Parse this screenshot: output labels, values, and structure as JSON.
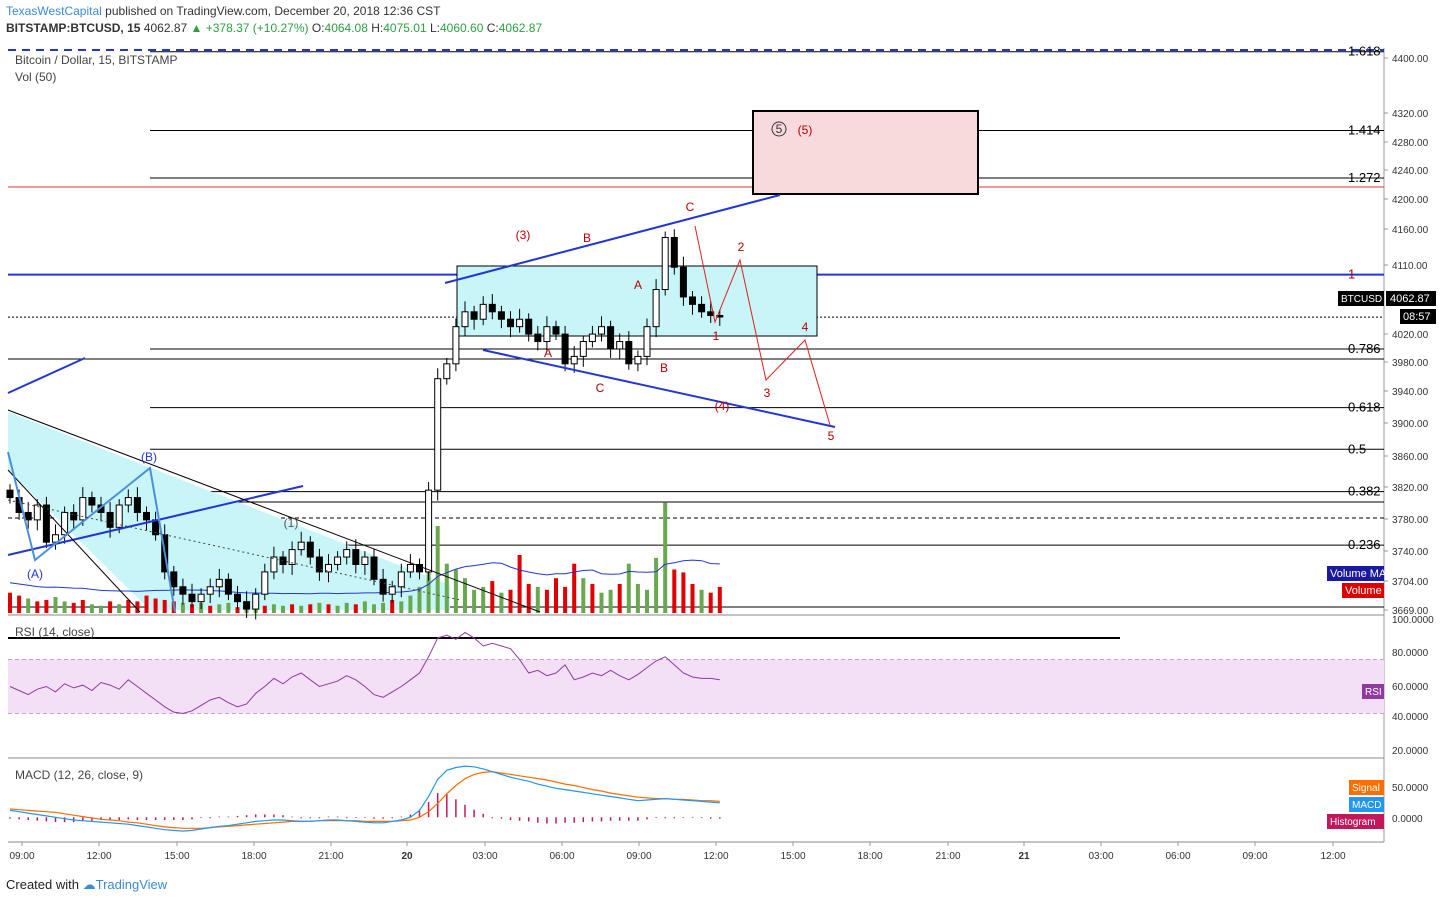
{
  "header": {
    "author": "TexasWestCapital",
    "published": "published on TradingView.com, December 20, 2018 12:36 CST",
    "symbol": "BITSTAMP:BTCUSD, 15",
    "last": "4062.87",
    "change": "▲ +378.37 (+10.27%)",
    "o_label": "O:",
    "o": "4064.08",
    "h_label": "H:",
    "h": "4075.01",
    "l_label": "L:",
    "l": "4060.60",
    "c_label": "C:",
    "c": "4062.87"
  },
  "footer": {
    "created_with": "Created with",
    "brand": "TradingView"
  },
  "colors": {
    "up": "#ffffff",
    "down": "#000000",
    "vol_up": "#6aa84f",
    "vol_down": "#e00000",
    "fib": "#000000",
    "channel": "#2236d6",
    "count": "#b30000",
    "rsi": "#8e3a9e",
    "macd": "#2196f3",
    "signal": "#ff6d00",
    "hist": "#c2185b",
    "zone": "#c8f5f7",
    "target_box": "#f8d9dc"
  },
  "chart_data": [
    {
      "type": "candlestick",
      "title": "Bitcoin / Dollar, 15, BITSTAMP",
      "volume_label": "Vol (50)",
      "price_ticks": [
        "4400.00",
        "4320.00",
        "4280.00",
        "4240.00",
        "4200.00",
        "4160.00",
        "4110.00",
        "4020.00",
        "3980.00",
        "3940.00",
        "3900.00",
        "3860.00",
        "3820.00",
        "3780.00",
        "3740.00",
        "3704.00",
        "3669.00"
      ],
      "last_price_label": "BTCUSD",
      "last_price": "4062.87",
      "countdown": "08:57",
      "x_ticks": [
        "09:00",
        "12:00",
        "15:00",
        "18:00",
        "21:00",
        "20",
        "03:00",
        "06:00",
        "09:00",
        "12:00",
        "15:00",
        "18:00",
        "21:00",
        "21",
        "03:00",
        "06:00",
        "09:00",
        "12:00"
      ],
      "close": [
        3820,
        3800,
        3790,
        3810,
        3760,
        3770,
        3800,
        3790,
        3820,
        3810,
        3800,
        3780,
        3810,
        3820,
        3800,
        3790,
        3770,
        3720,
        3700,
        3690,
        3680,
        3690,
        3700,
        3710,
        3690,
        3680,
        3670,
        3690,
        3720,
        3740,
        3730,
        3750,
        3760,
        3740,
        3720,
        3730,
        3740,
        3750,
        3730,
        3740,
        3710,
        3690,
        3700,
        3720,
        3730,
        3720,
        3830,
        3980,
        4000,
        4050,
        4070,
        4060,
        4080,
        4070,
        4060,
        4050,
        4060,
        4040,
        4030,
        4050,
        4040,
        4000,
        4010,
        4030,
        4040,
        4050,
        4020,
        4030,
        4000,
        4010,
        4050,
        4100,
        4170,
        4130,
        4090,
        4080,
        4070,
        4065,
        4063
      ],
      "volume_bars": [
        {
          "v": 14,
          "up": false
        },
        {
          "v": 12,
          "up": false
        },
        {
          "v": 10,
          "up": true
        },
        {
          "v": 8,
          "up": false
        },
        {
          "v": 9,
          "up": false
        },
        {
          "v": 11,
          "up": true
        },
        {
          "v": 8,
          "up": true
        },
        {
          "v": 7,
          "up": false
        },
        {
          "v": 9,
          "up": false
        },
        {
          "v": 6,
          "up": true
        },
        {
          "v": 5,
          "up": true
        },
        {
          "v": 8,
          "up": false
        },
        {
          "v": 6,
          "up": true
        },
        {
          "v": 9,
          "up": false
        },
        {
          "v": 8,
          "up": false
        },
        {
          "v": 12,
          "up": false
        },
        {
          "v": 10,
          "up": false
        },
        {
          "v": 9,
          "up": false
        },
        {
          "v": 8,
          "up": false
        },
        {
          "v": 7,
          "up": true
        },
        {
          "v": 6,
          "up": false
        },
        {
          "v": 7,
          "up": true
        },
        {
          "v": 5,
          "up": false
        },
        {
          "v": 6,
          "up": true
        },
        {
          "v": 7,
          "up": true
        },
        {
          "v": 4,
          "up": false
        },
        {
          "v": 6,
          "up": true
        },
        {
          "v": 7,
          "up": true
        },
        {
          "v": 5,
          "up": false
        },
        {
          "v": 6,
          "up": true
        },
        {
          "v": 5,
          "up": true
        },
        {
          "v": 6,
          "up": false
        },
        {
          "v": 5,
          "up": true
        },
        {
          "v": 6,
          "up": false
        },
        {
          "v": 7,
          "up": true
        },
        {
          "v": 6,
          "up": false
        },
        {
          "v": 5,
          "up": true
        },
        {
          "v": 7,
          "up": true
        },
        {
          "v": 6,
          "up": false
        },
        {
          "v": 8,
          "up": true
        },
        {
          "v": 6,
          "up": true
        },
        {
          "v": 7,
          "up": true
        },
        {
          "v": 9,
          "up": false
        },
        {
          "v": 8,
          "up": true
        },
        {
          "v": 12,
          "up": true
        },
        {
          "v": 18,
          "up": true
        },
        {
          "v": 42,
          "up": true
        },
        {
          "v": 60,
          "up": true
        },
        {
          "v": 34,
          "up": true
        },
        {
          "v": 30,
          "up": true
        },
        {
          "v": 24,
          "up": true
        },
        {
          "v": 16,
          "up": true
        },
        {
          "v": 18,
          "up": true
        },
        {
          "v": 22,
          "up": false
        },
        {
          "v": 14,
          "up": true
        },
        {
          "v": 16,
          "up": false
        },
        {
          "v": 40,
          "up": false
        },
        {
          "v": 20,
          "up": false
        },
        {
          "v": 18,
          "up": true
        },
        {
          "v": 16,
          "up": false
        },
        {
          "v": 24,
          "up": false
        },
        {
          "v": 18,
          "up": false
        },
        {
          "v": 34,
          "up": false
        },
        {
          "v": 24,
          "up": true
        },
        {
          "v": 20,
          "up": false
        },
        {
          "v": 14,
          "up": true
        },
        {
          "v": 16,
          "up": true
        },
        {
          "v": 20,
          "up": false
        },
        {
          "v": 34,
          "up": true
        },
        {
          "v": 20,
          "up": true
        },
        {
          "v": 16,
          "up": true
        },
        {
          "v": 38,
          "up": true
        },
        {
          "v": 76,
          "up": true
        },
        {
          "v": 30,
          "up": false
        },
        {
          "v": 28,
          "up": false
        },
        {
          "v": 20,
          "up": false
        },
        {
          "v": 16,
          "up": true
        },
        {
          "v": 14,
          "up": false
        },
        {
          "v": 18,
          "up": false
        }
      ],
      "volume_ma_label": "Volume MA",
      "volume_legend": "Volume",
      "fib_levels": [
        {
          "label": "1.618",
          "price": 4420
        },
        {
          "label": "1.414",
          "price": 4314
        },
        {
          "label": "1.272",
          "price": 4250
        },
        {
          "label": "1",
          "price": 4120
        },
        {
          "label": "0.786",
          "price": 4020
        },
        {
          "label": "0.618",
          "price": 3941
        },
        {
          "label": "0.5",
          "price": 3885
        },
        {
          "label": "0.382",
          "price": 3828
        },
        {
          "label": "0.236",
          "price": 3756
        }
      ],
      "wave_labels": [
        "(3)",
        "B",
        "C",
        "A",
        "A",
        "B",
        "C",
        "2",
        "1",
        "3",
        "4",
        "5",
        "(4)",
        "(1)",
        "(A)",
        "(B)",
        "(5)",
        "5"
      ]
    },
    {
      "type": "line",
      "title": "RSI (14, close)",
      "legend": "RSI",
      "y_ticks": [
        "100.0000",
        "80.0000",
        "60.0000",
        "40.0000",
        "20.0000"
      ],
      "ylim": [
        0,
        100
      ],
      "values": [
        50,
        47,
        44,
        48,
        50,
        46,
        52,
        49,
        51,
        47,
        53,
        51,
        48,
        55,
        50,
        45,
        40,
        35,
        31,
        30,
        32,
        36,
        40,
        42,
        38,
        35,
        37,
        45,
        50,
        56,
        52,
        57,
        60,
        55,
        50,
        52,
        54,
        58,
        55,
        50,
        44,
        42,
        46,
        50,
        55,
        60,
        72,
        86,
        88,
        85,
        90,
        86,
        80,
        82,
        80,
        78,
        70,
        60,
        62,
        58,
        60,
        66,
        55,
        57,
        60,
        58,
        62,
        58,
        55,
        59,
        64,
        69,
        72,
        66,
        60,
        57,
        56,
        56,
        55
      ]
    },
    {
      "type": "line",
      "title": "MACD (12, 26, close, 9)",
      "legend": [
        "Signal",
        "MACD",
        "Histogram"
      ],
      "y_ticks": [
        "50.0000",
        "0.0000"
      ],
      "ylim": [
        -30,
        80
      ],
      "macd": [
        10,
        8,
        6,
        4,
        2,
        0,
        -2,
        -4,
        -5,
        -6,
        -7,
        -8,
        -9,
        -10,
        -12,
        -14,
        -16,
        -18,
        -19,
        -20,
        -19,
        -17,
        -15,
        -13,
        -12,
        -10,
        -8,
        -6,
        -5,
        -4,
        -4,
        -5,
        -6,
        -6,
        -5,
        -4,
        -4,
        -5,
        -6,
        -7,
        -8,
        -8,
        -6,
        -4,
        0,
        10,
        30,
        55,
        68,
        72,
        74,
        73,
        70,
        66,
        62,
        58,
        55,
        52,
        48,
        45,
        42,
        40,
        38,
        36,
        34,
        32,
        30,
        28,
        26,
        24,
        25,
        26,
        27,
        26,
        25,
        24,
        23,
        22,
        21
      ],
      "signal": [
        12,
        11,
        10,
        9,
        8,
        7,
        5,
        3,
        1,
        -1,
        -3,
        -4,
        -5,
        -7,
        -8,
        -10,
        -12,
        -14,
        -15,
        -16,
        -16,
        -16,
        -15,
        -14,
        -13,
        -12,
        -11,
        -10,
        -9,
        -8,
        -7,
        -6,
        -6,
        -6,
        -5,
        -5,
        -5,
        -5,
        -5,
        -6,
        -6,
        -6,
        -6,
        -5,
        -4,
        0,
        8,
        20,
        34,
        46,
        56,
        62,
        65,
        66,
        64,
        62,
        60,
        58,
        56,
        54,
        51,
        48,
        46,
        43,
        40,
        38,
        35,
        33,
        31,
        29,
        28,
        27,
        27,
        26,
        26,
        25,
        24,
        24,
        23
      ],
      "hist": [
        -2,
        -3,
        -4,
        -5,
        -6,
        -7,
        -7,
        -7,
        -6,
        -5,
        -4,
        -4,
        -4,
        -3,
        -4,
        -4,
        -4,
        -4,
        -4,
        -4,
        -3,
        -1,
        0,
        1,
        1,
        2,
        3,
        4,
        4,
        4,
        3,
        1,
        0,
        0,
        0,
        1,
        1,
        0,
        -1,
        -1,
        -2,
        -2,
        0,
        1,
        4,
        10,
        22,
        35,
        34,
        26,
        18,
        11,
        5,
        0,
        -2,
        -4,
        -5,
        -6,
        -8,
        -9,
        -9,
        -8,
        -8,
        -7,
        -6,
        -6,
        -5,
        -5,
        -5,
        -5,
        -3,
        -1,
        0,
        0,
        -1,
        -1,
        -1,
        -2,
        -2
      ]
    }
  ]
}
